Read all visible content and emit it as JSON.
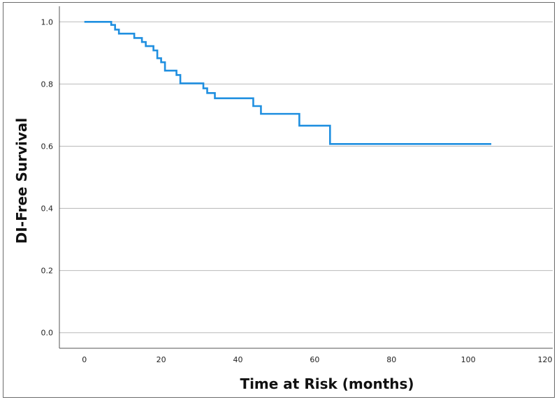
{
  "chart_data": {
    "type": "line",
    "step": true,
    "title": "",
    "xlabel": "Time at Risk (months)",
    "ylabel": "DI-Free Survival",
    "xlim": [
      -6.5,
      122
    ],
    "ylim": [
      -0.05,
      1.05
    ],
    "x_ticks": [
      0,
      20,
      40,
      60,
      80,
      100,
      120
    ],
    "y_ticks": [
      0.0,
      0.2,
      0.4,
      0.6,
      0.8,
      1.0
    ],
    "x_tick_labels": [
      "0",
      "20",
      "40",
      "60",
      "80",
      "100",
      "120"
    ],
    "y_tick_labels": [
      "0.0",
      "0.2",
      "0.4",
      "0.6",
      "0.8",
      "1.0"
    ],
    "grid": "horizontal",
    "line_color": "#1f8fe0",
    "series": [
      {
        "points": [
          [
            0,
            1.0
          ],
          [
            7,
            0.99
          ],
          [
            8,
            0.975
          ],
          [
            9,
            0.962
          ],
          [
            13,
            0.948
          ],
          [
            15,
            0.935
          ],
          [
            16,
            0.922
          ],
          [
            18,
            0.908
          ],
          [
            19,
            0.883
          ],
          [
            20,
            0.87
          ],
          [
            21,
            0.843
          ],
          [
            24,
            0.829
          ],
          [
            25,
            0.802
          ],
          [
            31,
            0.786
          ],
          [
            32,
            0.771
          ],
          [
            34,
            0.754
          ],
          [
            44,
            0.729
          ],
          [
            46,
            0.704
          ],
          [
            56,
            0.666
          ],
          [
            64,
            0.607
          ],
          [
            106,
            0.607
          ]
        ]
      }
    ]
  }
}
